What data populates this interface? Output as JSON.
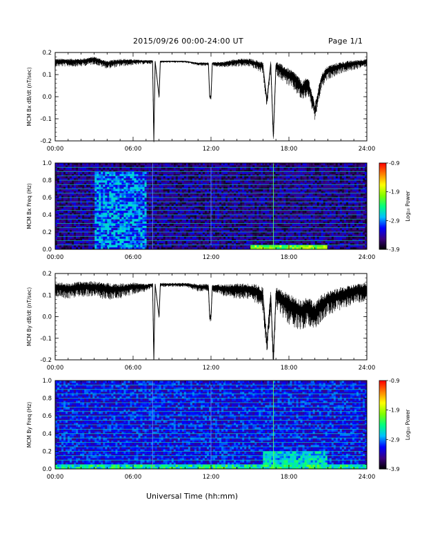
{
  "header": {
    "title": "2015/09/26  00:00-24:00 UT",
    "page": "Page 1/1"
  },
  "x_axis_title": "Universal Time (hh:mm)",
  "colorbar": {
    "label": "Log₁₀ Power",
    "ticks": [
      "-0.9",
      "-1.9",
      "-2.9",
      "-3.9"
    ],
    "range": [
      -3.9,
      -0.9
    ],
    "colors": [
      "#000000",
      "#3b0080",
      "#0000ff",
      "#00bfff",
      "#00ff80",
      "#80ff00",
      "#ffff00",
      "#ff8000",
      "#ff0000"
    ]
  },
  "chart_data": [
    {
      "type": "line",
      "ylabel": "MCM Bx dB/dt (nT/sec)",
      "xlim": [
        0,
        24
      ],
      "ylim": [
        -0.2,
        0.2
      ],
      "ytick_labels": [
        "0.2",
        "0.1",
        "0.0",
        "-0.1",
        "-0.2"
      ],
      "ytick_values": [
        0.2,
        0.1,
        0.0,
        -0.1,
        -0.2
      ],
      "xtick_labels": [
        "00:00",
        "06:00",
        "12:00",
        "18:00",
        "24:00"
      ],
      "xtick_values": [
        0,
        6,
        12,
        18,
        24
      ],
      "grid": false,
      "series": [
        {
          "x": [
            0,
            1,
            2,
            3,
            4,
            5,
            6,
            7,
            7.5,
            7.6,
            7.7,
            8.0,
            8.1,
            8.3,
            9,
            10,
            11,
            11.8,
            11.9,
            12.0,
            12.1,
            13,
            14,
            15,
            15.5,
            16.0,
            16.3,
            16.6,
            16.8,
            17.0,
            17.5,
            18,
            18.5,
            19,
            19.5,
            20,
            20.5,
            21,
            22,
            23,
            24
          ],
          "values": [
            0.16,
            0.16,
            0.16,
            0.17,
            0.15,
            0.16,
            0.16,
            0.16,
            0.16,
            -0.21,
            0.16,
            0.0,
            0.16,
            0.16,
            0.16,
            0.16,
            0.15,
            0.15,
            0.0,
            0.0,
            0.15,
            0.15,
            0.16,
            0.16,
            0.15,
            0.14,
            -0.02,
            0.15,
            -0.18,
            0.14,
            0.12,
            0.1,
            0.08,
            0.04,
            0.06,
            -0.06,
            0.08,
            0.12,
            0.14,
            0.15,
            0.16
          ],
          "envelope": [
            0.02,
            0.02,
            0.02,
            0.02,
            0.02,
            0.02,
            0.015,
            0.01,
            0.01,
            0.01,
            0.01,
            0.005,
            0.005,
            0.005,
            0.005,
            0.005,
            0.008,
            0.01,
            0.01,
            0.01,
            0.01,
            0.015,
            0.02,
            0.02,
            0.025,
            0.03,
            0.03,
            0.03,
            0.03,
            0.035,
            0.04,
            0.045,
            0.05,
            0.05,
            0.05,
            0.045,
            0.04,
            0.035,
            0.03,
            0.025,
            0.02
          ]
        }
      ]
    },
    {
      "type": "heatmap",
      "ylabel": "MCM Bx Freq (Hz)",
      "xlim": [
        0,
        24
      ],
      "ylim": [
        0,
        1.0
      ],
      "ytick_labels": [
        "1.0",
        "0.8",
        "0.6",
        "0.4",
        "0.2",
        "0.0"
      ],
      "ytick_values": [
        1.0,
        0.8,
        0.6,
        0.4,
        0.2,
        0.0
      ],
      "xtick_labels": [
        "00:00",
        "06:00",
        "12:00",
        "18:00",
        "24:00"
      ],
      "xtick_values": [
        0,
        6,
        12,
        18,
        24
      ],
      "background_level": -3.5,
      "harmonic_lines_hz": [
        0.05,
        0.1,
        0.15,
        0.2,
        0.25,
        0.3,
        0.35,
        0.4,
        0.45,
        0.5,
        0.55,
        0.6,
        0.65,
        0.7,
        0.75,
        0.8,
        0.85,
        0.9,
        0.95
      ],
      "vertical_lines_h": [
        7.5,
        12.0,
        16.8
      ],
      "hotspots": [
        {
          "t0": 3.0,
          "t1": 7.0,
          "f0": 0.0,
          "f1": 0.9,
          "level": -2.9
        },
        {
          "t0": 15.0,
          "t1": 21.0,
          "f0": 0.0,
          "f1": 0.06,
          "level": -2.0
        }
      ]
    },
    {
      "type": "line",
      "ylabel": "MCM By dB/dt (nT/sec)",
      "xlim": [
        0,
        24
      ],
      "ylim": [
        -0.2,
        0.2
      ],
      "ytick_labels": [
        "0.2",
        "0.1",
        "0.0",
        "-0.1",
        "-0.2"
      ],
      "ytick_values": [
        0.2,
        0.1,
        0.0,
        -0.1,
        -0.2
      ],
      "xtick_labels": [
        "00:00",
        "06:00",
        "12:00",
        "18:00",
        "24:00"
      ],
      "xtick_values": [
        0,
        6,
        12,
        18,
        24
      ],
      "grid": false,
      "series": [
        {
          "x": [
            0,
            1,
            2,
            3,
            4,
            5,
            6,
            7,
            7.5,
            7.6,
            7.7,
            8.0,
            8.1,
            8.3,
            9,
            10,
            11,
            11.8,
            11.9,
            12.0,
            12.1,
            13,
            14,
            15,
            15.5,
            16.0,
            16.3,
            16.6,
            16.8,
            17.0,
            17.5,
            18,
            18.5,
            19,
            19.5,
            20,
            20.5,
            21,
            22,
            23,
            24
          ],
          "values": [
            0.14,
            0.13,
            0.14,
            0.14,
            0.13,
            0.13,
            0.14,
            0.14,
            0.15,
            -0.2,
            0.15,
            0.0,
            0.15,
            0.15,
            0.15,
            0.15,
            0.14,
            0.14,
            0.0,
            0.0,
            0.14,
            0.13,
            0.13,
            0.13,
            0.12,
            0.1,
            -0.13,
            0.1,
            -0.2,
            0.1,
            0.08,
            0.06,
            0.04,
            0.03,
            0.05,
            0.02,
            0.06,
            0.08,
            0.1,
            0.12,
            0.13
          ],
          "envelope": [
            0.04,
            0.04,
            0.04,
            0.04,
            0.045,
            0.04,
            0.03,
            0.02,
            0.01,
            0.01,
            0.01,
            0.01,
            0.01,
            0.01,
            0.01,
            0.01,
            0.02,
            0.02,
            0.02,
            0.02,
            0.02,
            0.03,
            0.04,
            0.04,
            0.05,
            0.06,
            0.06,
            0.06,
            0.06,
            0.06,
            0.07,
            0.08,
            0.08,
            0.08,
            0.08,
            0.07,
            0.07,
            0.06,
            0.06,
            0.05,
            0.05
          ]
        }
      ]
    },
    {
      "type": "heatmap",
      "ylabel": "MCM By Freq (Hz)",
      "xlim": [
        0,
        24
      ],
      "ylim": [
        0,
        1.0
      ],
      "ytick_labels": [
        "1.0",
        "0.8",
        "0.6",
        "0.4",
        "0.2",
        "0.0"
      ],
      "ytick_values": [
        1.0,
        0.8,
        0.6,
        0.4,
        0.2,
        0.0
      ],
      "xtick_labels": [
        "00:00",
        "06:00",
        "12:00",
        "18:00",
        "24:00"
      ],
      "xtick_values": [
        0,
        6,
        12,
        18,
        24
      ],
      "background_level": -3.2,
      "harmonic_lines_hz": [
        0.05,
        0.1,
        0.15,
        0.2,
        0.25,
        0.3,
        0.35,
        0.4,
        0.45,
        0.5,
        0.55,
        0.6,
        0.65,
        0.7,
        0.75,
        0.8,
        0.85,
        0.9,
        0.95
      ],
      "vertical_lines_h": [
        7.5,
        12.0,
        16.8
      ],
      "hotspots": [
        {
          "t0": 0.0,
          "t1": 24.0,
          "f0": 0.0,
          "f1": 0.05,
          "level": -2.4
        },
        {
          "t0": 16.0,
          "t1": 21.0,
          "f0": 0.0,
          "f1": 0.2,
          "level": -2.6
        }
      ]
    }
  ]
}
